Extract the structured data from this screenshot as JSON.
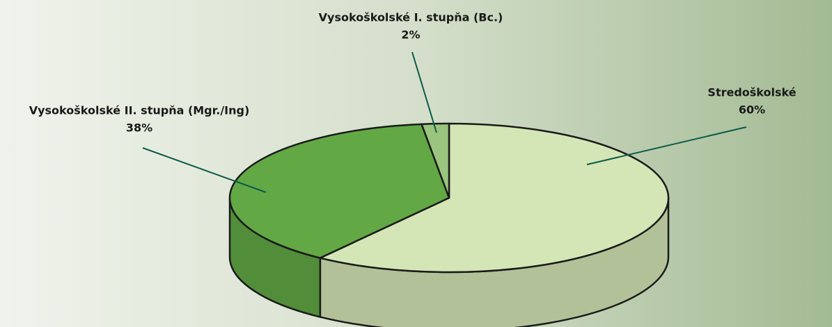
{
  "chart_data": {
    "type": "pie3d",
    "categories": [
      "Stredoškolské",
      "Vysokoškolské II. stupňa (Mgr./Ing)",
      "Vysokoškolské I. stupňa (Bc.)"
    ],
    "values": [
      60,
      38,
      2
    ],
    "value_labels": [
      "60%",
      "38%",
      "2%"
    ],
    "colors": [
      "#d4e6b5",
      "#62a845",
      "#9bc47e"
    ]
  }
}
